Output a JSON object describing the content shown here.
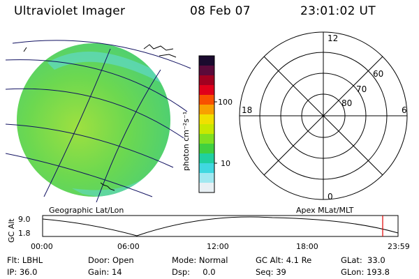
{
  "header": {
    "instrument": "Ultraviolet Imager",
    "date": "08 Feb 07",
    "time": "23:01:02 UT"
  },
  "colorbar": {
    "unit_label": "photon cm⁻²s⁻¹",
    "tick_labels": [
      "100",
      "10"
    ],
    "colors": [
      "#1a0a2e",
      "#5a0a3a",
      "#a00020",
      "#e0001a",
      "#f85000",
      "#f8a000",
      "#f0e000",
      "#c8e800",
      "#80e020",
      "#40d040",
      "#20d0a0",
      "#40d8e0",
      "#a0e8f0",
      "#e8f0f4"
    ]
  },
  "polar_plot": {
    "mlt_labels": {
      "top": "12",
      "bottom": "0",
      "left": "18",
      "right": "6"
    },
    "lat_labels": [
      "60",
      "70",
      "80"
    ]
  },
  "panel_labels": {
    "left": "Geographic Lat/Lon",
    "right": "Apex MLat/MLT"
  },
  "altitude_plot": {
    "y_axis_label": "GC Alt",
    "y_ticks": [
      "9.0",
      "1.8"
    ],
    "x_ticks": [
      "00:00",
      "06:00",
      "12:00",
      "18:00",
      "23:59"
    ],
    "marker_color": "#e00000"
  },
  "footer": {
    "filter": "Flt: LBHL",
    "ip": "IP: 36.0",
    "door": "Door: Open",
    "gain": "Gain: 14",
    "mode": "Mode: Normal",
    "dsp": "Dsp:     0.0",
    "gc_alt": "GC Alt: 4.1 Re",
    "seq": "Seq: 39",
    "glat": "GLat:  33.0",
    "glon": "GLon: 193.8"
  }
}
